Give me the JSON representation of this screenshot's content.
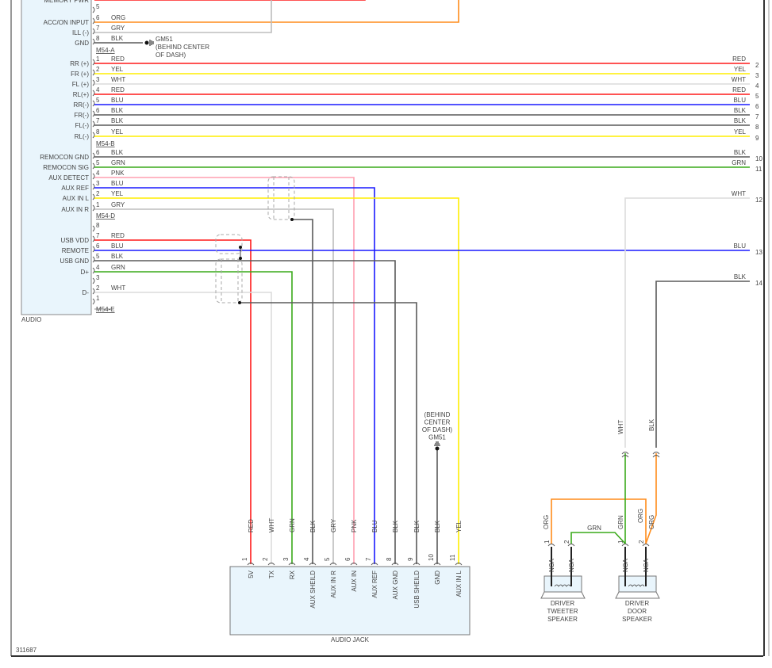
{
  "wire_colors": {
    "RED": "#ff1a1a",
    "YEL": "#ffee00",
    "WHT": "#dcdcdc",
    "BLU": "#1a1aff",
    "BLK": "#5a5a5a",
    "GRN": "#3aaa1a",
    "ORG": "#ff8c1a",
    "GRY": "#bdbdbd",
    "PNK": "#ff9fb0",
    "NCA": "#222222"
  },
  "audio": {
    "label": "AUDIO",
    "connectors": [
      "M54-A",
      "M54-B",
      "M54-D",
      "M54-E"
    ],
    "pins": [
      {
        "pin": "",
        "name": "MEMORY PWR",
        "wire": ""
      },
      {
        "pin": "5",
        "name": "",
        "wire": ""
      },
      {
        "pin": "6",
        "name": "ACC/ON INPUT",
        "wire": "ORG"
      },
      {
        "pin": "7",
        "name": "ILL (-)",
        "wire": "GRY"
      },
      {
        "pin": "8",
        "name": "GND",
        "wire": "BLK"
      },
      {
        "pin": "1",
        "name": "RR (+)",
        "wire": "RED"
      },
      {
        "pin": "2",
        "name": "FR (+)",
        "wire": "YEL"
      },
      {
        "pin": "3",
        "name": "FL (+)",
        "wire": "WHT"
      },
      {
        "pin": "4",
        "name": "RL(+)",
        "wire": "RED"
      },
      {
        "pin": "5",
        "name": "RR(-)",
        "wire": "BLU"
      },
      {
        "pin": "6",
        "name": "FR(-)",
        "wire": "BLK"
      },
      {
        "pin": "7",
        "name": "FL(-)",
        "wire": "BLK"
      },
      {
        "pin": "8",
        "name": "RL(-)",
        "wire": "YEL"
      },
      {
        "pin": "6",
        "name": "REMOCON GND",
        "wire": "BLK"
      },
      {
        "pin": "5",
        "name": "REMOCON SIG",
        "wire": "GRN"
      },
      {
        "pin": "4",
        "name": "AUX DETECT",
        "wire": "PNK"
      },
      {
        "pin": "3",
        "name": "AUX REF",
        "wire": "BLU"
      },
      {
        "pin": "2",
        "name": "AUX IN L",
        "wire": "YEL"
      },
      {
        "pin": "1",
        "name": "AUX IN R",
        "wire": "GRY"
      },
      {
        "pin": "8",
        "name": "",
        "wire": ""
      },
      {
        "pin": "7",
        "name": "USB VDD",
        "wire": "RED"
      },
      {
        "pin": "6",
        "name": "REMOTE",
        "wire": "BLU"
      },
      {
        "pin": "5",
        "name": "USB GND",
        "wire": "BLK"
      },
      {
        "pin": "4",
        "name": "D+",
        "wire": "GRN"
      },
      {
        "pin": "3",
        "name": "",
        "wire": ""
      },
      {
        "pin": "2",
        "name": "D-",
        "wire": "WHT"
      },
      {
        "pin": "1",
        "name": "",
        "wire": ""
      }
    ]
  },
  "ground_top": {
    "id": "GM51",
    "location": "(BEHIND CENTER",
    "location2": "OF DASH)"
  },
  "ground_jack": {
    "lines": [
      "(BEHIND",
      "CENTER",
      "OF DASH)",
      "GM51"
    ]
  },
  "right_terminals": [
    {
      "num": "2",
      "wire": "RED"
    },
    {
      "num": "3",
      "wire": "YEL"
    },
    {
      "num": "4",
      "wire": "WHT"
    },
    {
      "num": "5",
      "wire": "RED"
    },
    {
      "num": "6",
      "wire": "BLU"
    },
    {
      "num": "7",
      "wire": "BLK"
    },
    {
      "num": "8",
      "wire": "BLK"
    },
    {
      "num": "9",
      "wire": "YEL"
    },
    {
      "num": "10",
      "wire": "BLK"
    },
    {
      "num": "11",
      "wire": "GRN"
    },
    {
      "num": "12",
      "wire": "WHT"
    },
    {
      "num": "13",
      "wire": "BLU"
    },
    {
      "num": "14",
      "wire": "BLK"
    }
  ],
  "audio_jack": {
    "label": "AUDIO JACK",
    "pins": [
      {
        "pin": "1",
        "name": "5V",
        "wire": "RED"
      },
      {
        "pin": "2",
        "name": "TX",
        "wire": "WHT"
      },
      {
        "pin": "3",
        "name": "RX",
        "wire": "GRN"
      },
      {
        "pin": "4",
        "name": "AUX SHEILD",
        "wire": "BLK"
      },
      {
        "pin": "5",
        "name": "AUX IN R",
        "wire": "GRY"
      },
      {
        "pin": "6",
        "name": "AUX IN",
        "wire": "PNK"
      },
      {
        "pin": "7",
        "name": "AUX REF",
        "wire": "BLU"
      },
      {
        "pin": "8",
        "name": "AUX GND",
        "wire": "BLK"
      },
      {
        "pin": "9",
        "name": "USB SHEILD",
        "wire": "BLK"
      },
      {
        "pin": "10",
        "name": "GND",
        "wire": "BLK"
      },
      {
        "pin": "11",
        "name": "AUX IN L",
        "wire": "YEL"
      }
    ]
  },
  "speakers": [
    {
      "lines": [
        "DRIVER",
        "TWEETER",
        "SPEAKER"
      ],
      "pins": [
        {
          "pin": "1",
          "wire": "ORG",
          "lead": "NCA"
        },
        {
          "pin": "2",
          "wire": "",
          "lead": "NCA"
        }
      ]
    },
    {
      "lines": [
        "DRIVER",
        "DOOR",
        "SPEAKER"
      ],
      "pins": [
        {
          "pin": "1",
          "wire": "GRN",
          "lead": "NCA"
        },
        {
          "pin": "2",
          "wire": "ORG",
          "lead": "NCA"
        }
      ]
    }
  ],
  "speaker_wires": {
    "tweeter_link": "GRN",
    "door_in_1": "WHT",
    "door_in_2": "BLK",
    "door_org": "ORG"
  },
  "diagram_id": "311687"
}
